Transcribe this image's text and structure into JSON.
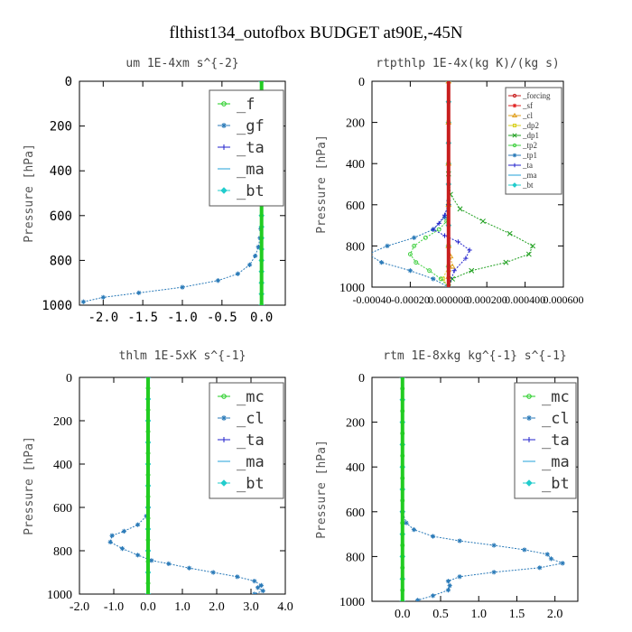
{
  "title": "flthist134_outofbox  BUDGET at90E,-45N",
  "chart_data": [
    {
      "type": "line",
      "title": "um   1E-4xm s^{-2}",
      "ylabel": "Pressure [hPa]",
      "xlim": [
        -2.3,
        0.3
      ],
      "ylim": [
        1000,
        0
      ],
      "xticks": [
        "-2.0",
        "-1.5",
        "-1.0",
        "-0.5",
        "0.0"
      ],
      "xtick_values": [
        -2.0,
        -1.5,
        -1.0,
        -0.5,
        0.0
      ],
      "yticks": [
        0,
        200,
        400,
        600,
        800,
        1000
      ],
      "tick_font": "mono",
      "legend": "inside-top-right",
      "legend_font": "mono-large",
      "series": [
        {
          "name": "_f",
          "color": "#22cc22",
          "marker": "circle",
          "x": [
            0,
            0,
            0,
            0,
            0,
            0,
            0,
            0,
            0,
            0,
            0
          ],
          "y": [
            0,
            100,
            200,
            300,
            400,
            500,
            600,
            700,
            800,
            900,
            1000
          ]
        },
        {
          "name": "_gf",
          "color": "#2a7ab8",
          "marker": "star",
          "x": [
            -0.01,
            -0.02,
            -0.04,
            -0.08,
            -0.15,
            -0.3,
            -0.55,
            -1.0,
            -1.55,
            -2.0,
            -2.25
          ],
          "y": [
            660,
            700,
            740,
            780,
            820,
            860,
            890,
            920,
            945,
            965,
            985
          ]
        },
        {
          "name": "_ta",
          "color": "#2222cc",
          "marker": "plus",
          "x": [
            0,
            0,
            0,
            0,
            0,
            0,
            0,
            0,
            0,
            0,
            0
          ],
          "y": [
            0,
            100,
            200,
            300,
            400,
            500,
            600,
            700,
            800,
            900,
            1000
          ]
        },
        {
          "name": "_ma",
          "color": "#22a0d8",
          "marker": "dash",
          "x": [
            0,
            0,
            0,
            0,
            0,
            0,
            0,
            0,
            0,
            0,
            0
          ],
          "y": [
            0,
            100,
            200,
            300,
            400,
            500,
            600,
            700,
            800,
            900,
            1000
          ]
        },
        {
          "name": "_bt",
          "color": "#22cccc",
          "marker": "diamond",
          "x": [
            0,
            0,
            0,
            0,
            0,
            0,
            0,
            0,
            0,
            0,
            0,
            0,
            0,
            0,
            0,
            0,
            0,
            0,
            0,
            0,
            0
          ],
          "y": [
            0,
            50,
            100,
            150,
            200,
            250,
            300,
            350,
            400,
            450,
            500,
            550,
            600,
            650,
            700,
            750,
            800,
            850,
            900,
            950,
            1000
          ]
        }
      ]
    },
    {
      "type": "line",
      "title": "rtpthlp   1E-4x(kg K)/(kg s)",
      "ylabel": "Pressure [hPa]",
      "xlim": [
        -0.0004,
        0.0006
      ],
      "ylim": [
        1000,
        0
      ],
      "xticks": [
        "-0.00040",
        "-0.00020",
        "0.000000",
        "0.000200",
        "0.000400",
        "0.000600"
      ],
      "xtick_values": [
        -0.0004,
        -0.0002,
        0.0,
        0.0002,
        0.0004,
        0.0006
      ],
      "yticks": [
        0,
        200,
        400,
        600,
        800,
        1000
      ],
      "tick_font": "serif",
      "legend": "inside-top-right",
      "legend_font": "small",
      "series": [
        {
          "name": "_forcing",
          "color": "#c81e1e",
          "marker": "circle",
          "x": [
            0,
            0,
            0,
            0,
            0,
            0,
            0,
            0,
            0,
            0,
            0
          ],
          "y": [
            0,
            100,
            200,
            300,
            400,
            500,
            600,
            700,
            800,
            900,
            1000
          ]
        },
        {
          "name": "_sf",
          "color": "#e02020",
          "marker": "star",
          "x": [
            0,
            0,
            0,
            0,
            0,
            0,
            0,
            0,
            0,
            0,
            0
          ],
          "y": [
            0,
            100,
            200,
            300,
            400,
            500,
            600,
            700,
            800,
            900,
            1000
          ]
        },
        {
          "name": "_cl",
          "color": "#e0a020",
          "marker": "triangle",
          "x": [
            0,
            0,
            0,
            0,
            0,
            1e-05,
            2e-05,
            0,
            0
          ],
          "y": [
            0,
            200,
            400,
            600,
            800,
            850,
            900,
            950,
            1000
          ]
        },
        {
          "name": "_dp2",
          "color": "#d8d020",
          "marker": "square",
          "x": [
            0,
            0,
            0,
            0,
            0,
            0,
            -3e-05,
            0
          ],
          "y": [
            0,
            200,
            400,
            600,
            800,
            900,
            960,
            1000
          ]
        },
        {
          "name": "_dp1",
          "color": "#20a020",
          "marker": "x",
          "x": [
            0,
            1e-05,
            6e-05,
            0.00018,
            0.00032,
            0.00044,
            0.00042,
            0.0003,
            0.00012,
            2e-05,
            0
          ],
          "y": [
            450,
            550,
            620,
            680,
            740,
            800,
            840,
            880,
            920,
            960,
            1000
          ]
        },
        {
          "name": "_tp2",
          "color": "#40d040",
          "marker": "circle",
          "x": [
            0,
            -1e-05,
            -5e-05,
            -0.00012,
            -0.00018,
            -0.0002,
            -0.00017,
            -0.0001,
            -4e-05,
            0
          ],
          "y": [
            600,
            680,
            720,
            760,
            800,
            840,
            880,
            920,
            960,
            1000
          ]
        },
        {
          "name": "_tp1",
          "color": "#2a7ab8",
          "marker": "star",
          "x": [
            0,
            -2e-05,
            -8e-05,
            -0.00018,
            -0.00032,
            -0.00042,
            -0.00035,
            -0.0002,
            -8e-05,
            0
          ],
          "y": [
            580,
            660,
            720,
            760,
            800,
            840,
            880,
            920,
            960,
            1000
          ]
        },
        {
          "name": "_ta",
          "color": "#2222cc",
          "marker": "plus",
          "x": [
            0,
            -2e-05,
            -5e-05,
            -8e-05,
            -2e-05,
            5e-05,
            0.00011,
            9e-05,
            3e-05,
            0
          ],
          "y": [
            600,
            650,
            690,
            720,
            750,
            780,
            820,
            860,
            920,
            1000
          ]
        },
        {
          "name": "_ma",
          "color": "#22a0d8",
          "marker": "dash",
          "x": [
            0,
            0,
            0,
            0,
            0,
            0,
            0,
            0,
            0,
            0,
            0
          ],
          "y": [
            0,
            100,
            200,
            300,
            400,
            500,
            600,
            700,
            800,
            900,
            1000
          ]
        },
        {
          "name": "_bt",
          "color": "#22cccc",
          "marker": "diamond",
          "x": [
            0,
            0,
            0,
            0,
            0,
            0,
            0,
            0,
            0,
            0,
            0
          ],
          "y": [
            0,
            100,
            200,
            300,
            400,
            500,
            600,
            700,
            800,
            900,
            1000
          ]
        }
      ]
    },
    {
      "type": "line",
      "title": "thlm   1E-5xK s^{-1}",
      "ylabel": "Pressure [hPa]",
      "xlim": [
        -2.0,
        4.0
      ],
      "ylim": [
        1000,
        0
      ],
      "xticks": [
        "-2.0",
        "-1.0",
        "0.0",
        "1.0",
        "2.0",
        "3.0",
        "4.0"
      ],
      "xtick_values": [
        -2.0,
        -1.0,
        0.0,
        1.0,
        2.0,
        3.0,
        4.0
      ],
      "yticks": [
        0,
        200,
        400,
        600,
        800,
        1000
      ],
      "tick_font": "serif",
      "legend": "inside-top-right",
      "legend_font": "mono-large",
      "series": [
        {
          "name": "_mc",
          "color": "#22cc22",
          "marker": "circle",
          "x": [
            0,
            0,
            0,
            0,
            0,
            0,
            0,
            0,
            0,
            0,
            0,
            0,
            0,
            0,
            0,
            0,
            0,
            0,
            0,
            0,
            0
          ],
          "y": [
            0,
            50,
            100,
            150,
            200,
            250,
            300,
            350,
            400,
            450,
            500,
            550,
            600,
            650,
            700,
            750,
            800,
            850,
            900,
            950,
            1000
          ]
        },
        {
          "name": "_cl",
          "color": "#2a7ab8",
          "marker": "star",
          "x": [
            0,
            0,
            -0.05,
            -0.3,
            -0.7,
            -1.05,
            -1.1,
            -0.75,
            -0.3,
            0.1,
            0.6,
            1.2,
            1.9,
            2.6,
            3.1,
            3.3,
            3.2,
            3.35,
            3.1
          ],
          "y": [
            0,
            600,
            640,
            680,
            710,
            730,
            760,
            790,
            820,
            845,
            860,
            880,
            900,
            920,
            940,
            960,
            970,
            985,
            1000
          ]
        },
        {
          "name": "_ta",
          "color": "#2222cc",
          "marker": "plus",
          "x": [
            0,
            0,
            0,
            0,
            0,
            0,
            0,
            0,
            0,
            0,
            0
          ],
          "y": [
            0,
            100,
            200,
            300,
            400,
            500,
            600,
            700,
            800,
            900,
            1000
          ]
        },
        {
          "name": "_ma",
          "color": "#22a0d8",
          "marker": "dash",
          "x": [
            0,
            0,
            0,
            0,
            0,
            0,
            0,
            0,
            0,
            0,
            0
          ],
          "y": [
            0,
            100,
            200,
            300,
            400,
            500,
            600,
            700,
            800,
            900,
            1000
          ]
        },
        {
          "name": "_bt",
          "color": "#22cccc",
          "marker": "diamond",
          "x": [
            0,
            0,
            0,
            0,
            0,
            0,
            0,
            0,
            0,
            0,
            0
          ],
          "y": [
            0,
            100,
            200,
            300,
            400,
            500,
            600,
            700,
            800,
            900,
            1000
          ]
        }
      ]
    },
    {
      "type": "line",
      "title": "rtm   1E-8xkg kg^{-1} s^{-1}",
      "ylabel": "Pressure [hPa]",
      "xlim": [
        -0.4,
        2.3
      ],
      "ylim": [
        1000,
        0
      ],
      "xticks": [
        "0.0",
        "0.5",
        "1.0",
        "1.5",
        "2.0"
      ],
      "xtick_values": [
        0.0,
        0.5,
        1.0,
        1.5,
        2.0
      ],
      "yticks": [
        0,
        200,
        400,
        600,
        800,
        1000
      ],
      "tick_font": "serif",
      "legend": "inside-top-right",
      "legend_font": "mono-large",
      "series": [
        {
          "name": "_mc",
          "color": "#22cc22",
          "marker": "circle",
          "x": [
            0,
            0,
            0,
            0,
            0,
            0,
            0,
            0,
            0,
            0,
            0,
            0,
            0,
            0,
            0,
            0,
            0,
            0,
            0,
            0,
            0
          ],
          "y": [
            0,
            50,
            100,
            150,
            200,
            250,
            300,
            350,
            400,
            450,
            500,
            550,
            600,
            650,
            700,
            750,
            800,
            850,
            900,
            950,
            1000
          ]
        },
        {
          "name": "_cl",
          "color": "#2a7ab8",
          "marker": "star",
          "x": [
            0,
            0,
            0.05,
            0.15,
            0.4,
            0.75,
            1.2,
            1.6,
            1.9,
            1.95,
            2.1,
            1.8,
            1.2,
            0.75,
            0.6,
            0.62,
            0.6,
            0.4,
            0.2
          ],
          "y": [
            0,
            600,
            650,
            680,
            710,
            730,
            750,
            770,
            790,
            810,
            830,
            850,
            870,
            890,
            910,
            930,
            950,
            975,
            995
          ]
        },
        {
          "name": "_ta",
          "color": "#2222cc",
          "marker": "plus",
          "x": [
            0,
            0,
            0,
            0,
            0,
            0,
            0,
            0,
            0,
            0,
            0
          ],
          "y": [
            0,
            100,
            200,
            300,
            400,
            500,
            600,
            700,
            800,
            900,
            1000
          ]
        },
        {
          "name": "_ma",
          "color": "#22a0d8",
          "marker": "dash",
          "x": [
            0,
            0,
            0,
            0,
            0,
            0,
            0,
            0,
            0,
            0,
            0
          ],
          "y": [
            0,
            100,
            200,
            300,
            400,
            500,
            600,
            700,
            800,
            900,
            1000
          ]
        },
        {
          "name": "_bt",
          "color": "#22cccc",
          "marker": "diamond",
          "x": [
            0,
            0,
            0,
            0,
            0,
            0,
            0,
            0,
            0,
            0,
            0
          ],
          "y": [
            0,
            100,
            200,
            300,
            400,
            500,
            600,
            700,
            800,
            900,
            1000
          ]
        }
      ]
    }
  ]
}
